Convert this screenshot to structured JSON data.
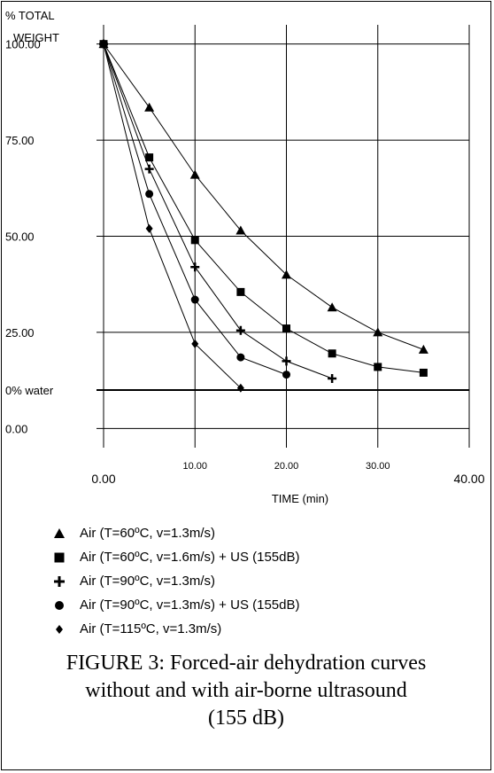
{
  "chart_data": {
    "type": "line",
    "ylabel_lines": [
      "% TOTAL",
      "WEIGHT"
    ],
    "xlabel": "TIME (min)",
    "xlim": [
      0,
      40
    ],
    "ylim": [
      -5,
      105
    ],
    "x_ticks": [
      0,
      10,
      20,
      30,
      40
    ],
    "x_tick_labels": [
      "0.00",
      "10.00",
      "20.00",
      "30.00",
      "40.00"
    ],
    "y_ticks": [
      0,
      25,
      50,
      75,
      100
    ],
    "y_tick_labels": [
      "0.00",
      "25.00",
      "50.00",
      "75.00",
      "100.00"
    ],
    "grid": true,
    "reference_line": {
      "label": "0% water",
      "y": 10
    },
    "legend_position": "bottom",
    "series": [
      {
        "name": "Air (T=60ºC, v=1.3m/s)",
        "marker": "triangle",
        "x": [
          0,
          5,
          10,
          15,
          20,
          25,
          30,
          35
        ],
        "y": [
          100,
          83.5,
          66,
          51.5,
          40,
          31.5,
          25,
          20.5
        ]
      },
      {
        "name": "Air (T=60ºC, v=1.6m/s) + US (155dB)",
        "marker": "square",
        "x": [
          0,
          5,
          10,
          15,
          20,
          25,
          30,
          35
        ],
        "y": [
          100,
          70.5,
          49,
          35.5,
          26,
          19.5,
          16,
          14.5
        ]
      },
      {
        "name": "Air (T=90ºC, v=1.3m/s)",
        "marker": "plus",
        "x": [
          0,
          5,
          10,
          15,
          20,
          25
        ],
        "y": [
          100,
          67.5,
          42,
          25.5,
          17.5,
          13
        ]
      },
      {
        "name": "Air (T=90ºC, v=1.3m/s) + US (155dB)",
        "marker": "circle",
        "x": [
          0,
          5,
          10,
          15,
          20
        ],
        "y": [
          100,
          61,
          33.5,
          18.5,
          14
        ]
      },
      {
        "name": "Air (T=115ºC, v=1.3m/s)",
        "marker": "diamond",
        "x": [
          0,
          5,
          10,
          15
        ],
        "y": [
          100,
          52,
          22,
          10.5
        ]
      }
    ]
  },
  "caption": {
    "lines": [
      "FIGURE 3: Forced-air dehydration curves",
      "without and with air-borne ultrasound",
      "(155 dB)"
    ]
  }
}
